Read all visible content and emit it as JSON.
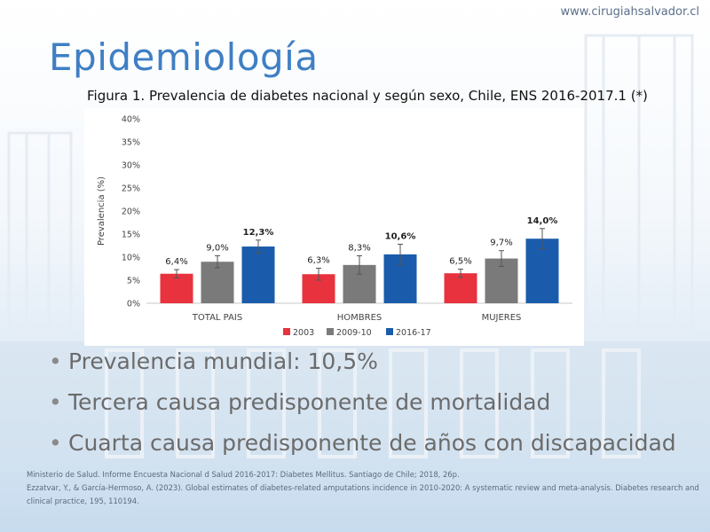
{
  "header": {
    "site_url": "www.cirugiahsalvador.cl",
    "title": "Epidemiología"
  },
  "figure": {
    "caption": "Figura 1. Prevalencia de diabetes nacional y según sexo, Chile, ENS 2016-2017.1 (*)"
  },
  "chart_data": {
    "type": "bar",
    "categories": [
      "TOTAL PAIS",
      "HOMBRES",
      "MUJERES"
    ],
    "series": [
      {
        "name": "2003",
        "values": [
          6.4,
          6.3,
          6.5
        ],
        "labels": [
          "6,4%",
          "6,3%",
          "6,5%"
        ],
        "error": [
          0.9,
          1.3,
          0.9
        ],
        "color": "#e8323e"
      },
      {
        "name": "2009-10",
        "values": [
          9.0,
          8.3,
          9.7
        ],
        "labels": [
          "9,0%",
          "8,3%",
          "9,7%"
        ],
        "error": [
          1.3,
          2.0,
          1.7
        ],
        "color": "#7a7a7a"
      },
      {
        "name": "2016-17",
        "values": [
          12.3,
          10.6,
          14.0
        ],
        "labels": [
          "12,3%",
          "10,6%",
          "14,0%"
        ],
        "error": [
          1.4,
          2.2,
          2.2
        ],
        "color": "#1a5cab",
        "bold_labels": true
      }
    ],
    "ylabel": "Prevalencia (%)",
    "ylim": [
      0,
      40
    ],
    "yticks": [
      0,
      5,
      10,
      15,
      20,
      25,
      30,
      35,
      40
    ],
    "ytick_labels": [
      "0%",
      "5%",
      "10%",
      "15%",
      "20%",
      "25%",
      "30%",
      "35%",
      "40%"
    ],
    "grid": false,
    "legend_position": "bottom"
  },
  "bullets": [
    "Prevalencia mundial: 10,5%",
    "Tercera causa predisponente de mortalidad",
    "Cuarta causa predisponente de años con discapacidad"
  ],
  "references": [
    "Ministerio de Salud. Informe Encuesta Nacional d Salud 2016-2017: Diabetes Mellitus. Santiago de Chile; 2018, 26p.",
    "Ezzatvar, Y., & García-Hermoso, A. (2023). Global estimates of diabetes-related amputations incidence in 2010-2020: A systematic review and meta-analysis. Diabetes research and clinical practice, 195, 110194."
  ],
  "colors": {
    "title": "#3f7fc4",
    "bullet_text": "#6b6b6b",
    "reference_text": "#5b6b7d"
  }
}
